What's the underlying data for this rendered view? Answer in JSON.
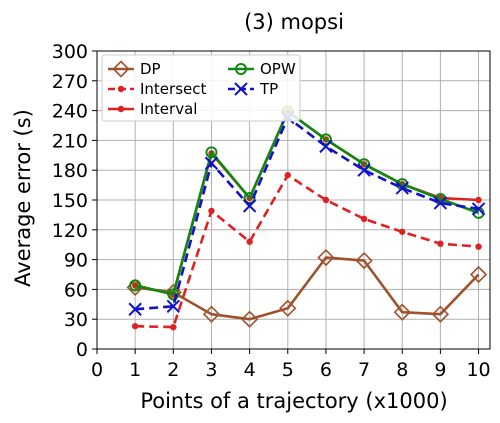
{
  "chart_data": {
    "type": "line",
    "title": "(3) mopsi",
    "xlabel": "Points of a trajectory (x1000)",
    "ylabel": "Average error (s)",
    "xlim": [
      0,
      10.3
    ],
    "ylim": [
      0,
      300
    ],
    "xticks": [
      0,
      1,
      2,
      3,
      4,
      5,
      6,
      7,
      8,
      9,
      10
    ],
    "yticks": [
      0,
      30,
      60,
      90,
      120,
      150,
      180,
      210,
      240,
      270,
      300
    ],
    "grid": true,
    "legend_position": "top-left",
    "legend_columns": 2,
    "series": [
      {
        "name": "DP",
        "color": "#a0522d",
        "marker": "diamond-open",
        "linestyle": "solid",
        "x": [
          1,
          2,
          3,
          4,
          5,
          6,
          7,
          8,
          9,
          10
        ],
        "y": [
          62,
          57,
          35,
          30,
          41,
          92,
          89,
          37,
          35,
          75
        ]
      },
      {
        "name": "Intersect",
        "color": "#dd2222",
        "marker": "dot",
        "linestyle": "dashed",
        "x": [
          1,
          2,
          3,
          4,
          5,
          6,
          7,
          8,
          9,
          10
        ],
        "y": [
          23,
          22,
          139,
          108,
          175,
          150,
          131,
          118,
          106,
          103
        ]
      },
      {
        "name": "Interval",
        "color": "#dd2222",
        "marker": "dot",
        "linestyle": "solid",
        "x": [
          1,
          2,
          3,
          4,
          5,
          6,
          7,
          8,
          9,
          10
        ],
        "y": [
          64,
          55,
          197,
          152,
          239,
          211,
          186,
          166,
          152,
          150
        ]
      },
      {
        "name": "OPW",
        "color": "#118811",
        "marker": "circle-open",
        "linestyle": "solid",
        "x": [
          1,
          2,
          3,
          4,
          5,
          6,
          7,
          8,
          9,
          10
        ],
        "y": [
          64,
          55,
          198,
          152,
          239,
          211,
          186,
          166,
          151,
          137
        ]
      },
      {
        "name": "TP",
        "color": "#1111cc",
        "marker": "x",
        "linestyle": "dashed",
        "x": [
          1,
          2,
          3,
          4,
          5,
          6,
          7,
          8,
          9,
          10
        ],
        "y": [
          40,
          43,
          187,
          144,
          233,
          204,
          180,
          162,
          147,
          141
        ]
      }
    ]
  }
}
